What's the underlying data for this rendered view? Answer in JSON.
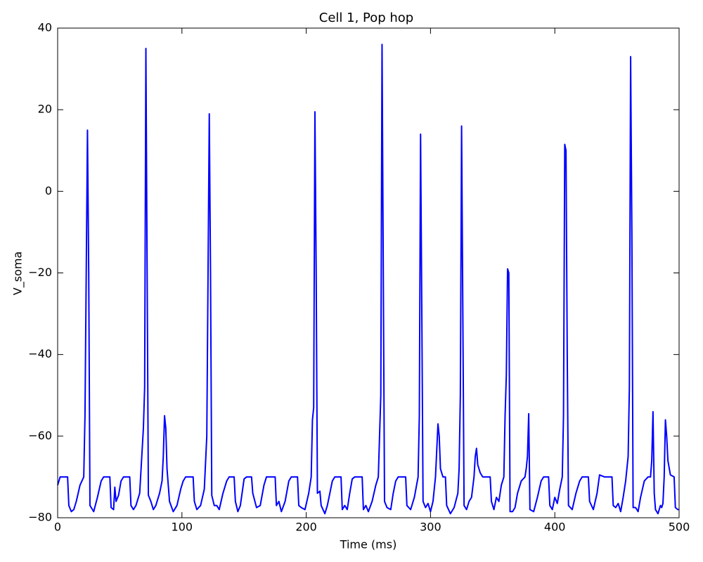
{
  "chart_data": {
    "type": "line",
    "title": "Cell 1, Pop hop",
    "x_label": "Time (ms)",
    "y_label": "V_soma",
    "xlim": [
      0,
      500
    ],
    "ylim": [
      -80,
      40
    ],
    "xticks": [
      0,
      100,
      200,
      300,
      400,
      500
    ],
    "yticks": [
      {
        "value": -80,
        "label": "−80"
      },
      {
        "value": -60,
        "label": "−60"
      },
      {
        "value": -40,
        "label": "−40"
      },
      {
        "value": -20,
        "label": "−20"
      },
      0,
      20,
      40
    ],
    "grid": false,
    "x": [
      0,
      2,
      8,
      9,
      11,
      13,
      15,
      18,
      21,
      22,
      24,
      25,
      26,
      29,
      32,
      35,
      37,
      42,
      43,
      45,
      46,
      47,
      49,
      51,
      53,
      58,
      59,
      61,
      63,
      66,
      69,
      70,
      71,
      72,
      73,
      75,
      77,
      79,
      82,
      84,
      85,
      86,
      87,
      88,
      90,
      93,
      96,
      99,
      101,
      103,
      109,
      110,
      112,
      115,
      118,
      120,
      122,
      123,
      124,
      126,
      128,
      130,
      133,
      136,
      138,
      142,
      143,
      145,
      147,
      150,
      152,
      156,
      157,
      160,
      163,
      166,
      168,
      175,
      176,
      178,
      180,
      183,
      186,
      188,
      193,
      194,
      196,
      199,
      202,
      204,
      205,
      206,
      207,
      208,
      209,
      211,
      212,
      215,
      217,
      219,
      221,
      223,
      228,
      229,
      231,
      233,
      235,
      237,
      239,
      245,
      246,
      248,
      250,
      253,
      256,
      258,
      260,
      261,
      262,
      263,
      265,
      268,
      270,
      272,
      274,
      280,
      281,
      284,
      287,
      290,
      291,
      292,
      293,
      294,
      296,
      298,
      300,
      302,
      304,
      306,
      307,
      308,
      310,
      312,
      313,
      316,
      319,
      322,
      323,
      324,
      325,
      326,
      327,
      329,
      331,
      333,
      335,
      336,
      337,
      338,
      340,
      342,
      348,
      349,
      351,
      353,
      355,
      357,
      359,
      360,
      361,
      362,
      363,
      364,
      366,
      368,
      370,
      373,
      376,
      377,
      378,
      379,
      380,
      383,
      386,
      389,
      391,
      395,
      396,
      398,
      400,
      402,
      404,
      406,
      407,
      408,
      409,
      410,
      411,
      414,
      417,
      420,
      422,
      427,
      428,
      431,
      434,
      436,
      440,
      446,
      447,
      449,
      451,
      453,
      455,
      457,
      459,
      460,
      461,
      462,
      463,
      465,
      467,
      469,
      472,
      475,
      477,
      478,
      479,
      480,
      481,
      483,
      485,
      486,
      487,
      488,
      489,
      490,
      491,
      493,
      496,
      497,
      499,
      500
    ],
    "series": [
      {
        "name": "V_soma",
        "color": "#0000ff",
        "values": [
          -72,
          -70,
          -70,
          -77,
          -78.5,
          -78,
          -76,
          -72,
          -70,
          -55,
          15,
          -20,
          -77,
          -78.5,
          -75,
          -71,
          -70,
          -70,
          -77.5,
          -78,
          -72.5,
          -76,
          -74.5,
          -71,
          -70,
          -70,
          -77,
          -78,
          -77,
          -74,
          -58,
          -48,
          35,
          -20,
          -74.5,
          -76,
          -78,
          -77,
          -74,
          -71,
          -65,
          -55,
          -58,
          -68,
          -76,
          -78.5,
          -77,
          -73,
          -71,
          -70,
          -70,
          -76,
          -78,
          -77,
          -73,
          -60,
          19,
          -20,
          -74.5,
          -77,
          -77,
          -78,
          -74,
          -71,
          -70,
          -70,
          -76,
          -78.5,
          -77,
          -70.5,
          -70,
          -70,
          -74,
          -77.5,
          -77,
          -72,
          -70,
          -70,
          -77,
          -76,
          -78.5,
          -76,
          -71,
          -70,
          -70,
          -77,
          -77.5,
          -78,
          -74,
          -70,
          -56,
          -53,
          19.5,
          -20,
          -74,
          -73.5,
          -77,
          -79,
          -77,
          -74,
          -71,
          -70,
          -70,
          -78,
          -77,
          -78,
          -74,
          -70.5,
          -70,
          -70,
          -78,
          -77,
          -78.5,
          -76,
          -72,
          -70,
          -50,
          36,
          -20,
          -76,
          -77.5,
          -78,
          -74,
          -71,
          -70,
          -70,
          -77,
          -78,
          -75,
          -70,
          -55,
          14,
          -30,
          -76,
          -77.5,
          -76.5,
          -78.5,
          -76,
          -70,
          -57,
          -60,
          -68,
          -70,
          -70,
          -77,
          -79,
          -77.5,
          -74,
          -68,
          -50,
          16,
          -30,
          -77,
          -78,
          -76,
          -75,
          -70,
          -65,
          -63,
          -67,
          -69,
          -70,
          -70,
          -76,
          -78,
          -75,
          -76,
          -72,
          -70,
          -55,
          -45,
          -19,
          -20,
          -78.5,
          -78.5,
          -77.5,
          -74,
          -71,
          -70,
          -68,
          -65,
          -54.5,
          -78,
          -78.5,
          -75,
          -71,
          -70,
          -70,
          -77,
          -78,
          -75,
          -76.5,
          -73,
          -70,
          -55,
          11.5,
          10,
          -40,
          -77,
          -78,
          -74,
          -71,
          -70,
          -70,
          -76,
          -78,
          -74,
          -69.5,
          -70,
          -70,
          -77,
          -77.5,
          -76.5,
          -78.5,
          -75,
          -71,
          -65,
          -48,
          33,
          -10,
          -77.5,
          -77.5,
          -78.5,
          -75,
          -71,
          -70,
          -70,
          -66,
          -54,
          -74,
          -78,
          -79,
          -77,
          -77.5,
          -76.5,
          -70,
          -56,
          -60,
          -66,
          -69.5,
          -70,
          -77.5,
          -78,
          -78
        ]
      }
    ]
  }
}
